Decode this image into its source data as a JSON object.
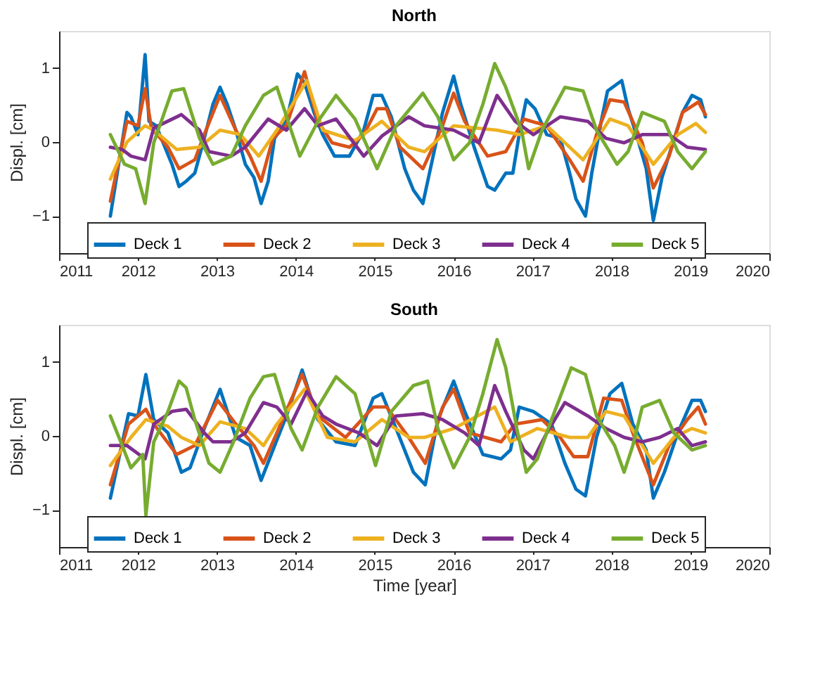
{
  "chart_data": [
    {
      "type": "line",
      "title": "North",
      "ylabel": "Displ. [cm]",
      "xlim": [
        2011,
        2020
      ],
      "xticks": [
        2011,
        2012,
        2013,
        2014,
        2015,
        2016,
        2017,
        2018,
        2019,
        2020
      ],
      "ylim": [
        -1.5,
        1.5
      ],
      "yticks": [
        -1,
        0,
        1
      ],
      "grid": false,
      "legend": "bottom",
      "marker": "none",
      "line_style": "solid",
      "series": [
        {
          "name": "Deck 1",
          "color": "#0072bd",
          "x": [
            2011.65,
            2011.86,
            2011.91,
            2012.0,
            2012.09,
            2012.14,
            2012.23,
            2012.43,
            2012.52,
            2012.61,
            2012.72,
            2012.84,
            2012.95,
            2013.04,
            2013.13,
            2013.24,
            2013.36,
            2013.47,
            2013.56,
            2013.65,
            2013.73,
            2013.88,
            2014.02,
            2014.11,
            2014.23,
            2014.34,
            2014.49,
            2014.68,
            2014.86,
            2014.98,
            2015.09,
            2015.21,
            2015.38,
            2015.49,
            2015.61,
            2015.74,
            2015.86,
            2016.0,
            2016.09,
            2016.26,
            2016.43,
            2016.52,
            2016.66,
            2016.75,
            2016.83,
            2016.92,
            2017.03,
            2017.18,
            2017.35,
            2017.47,
            2017.55,
            2017.67,
            2017.75,
            2017.87,
            2017.95,
            2018.13,
            2018.21,
            2018.33,
            2018.44,
            2018.53,
            2018.64,
            2018.76,
            2018.9,
            2019.02,
            2019.13,
            2019.19
          ],
          "values": [
            -1.0,
            0.4,
            0.34,
            0.1,
            1.18,
            0.28,
            0.22,
            -0.3,
            -0.6,
            -0.53,
            -0.42,
            0.05,
            0.51,
            0.74,
            0.51,
            0.16,
            -0.3,
            -0.48,
            -0.83,
            -0.53,
            0.05,
            0.28,
            0.92,
            0.8,
            0.4,
            0.1,
            -0.19,
            -0.19,
            0.16,
            0.63,
            0.63,
            0.34,
            -0.36,
            -0.65,
            -0.83,
            -0.19,
            0.4,
            0.89,
            0.51,
            -0.07,
            -0.6,
            -0.65,
            -0.42,
            -0.42,
            0.1,
            0.57,
            0.45,
            0.1,
            0.05,
            -0.42,
            -0.77,
            -1.0,
            -0.42,
            0.28,
            0.69,
            0.83,
            0.45,
            0.05,
            -0.36,
            -1.06,
            -0.48,
            -0.07,
            0.4,
            0.63,
            0.57,
            0.34
          ]
        },
        {
          "name": "Deck 2",
          "color": "#d95319",
          "x": [
            2011.65,
            2011.86,
            2012.0,
            2012.09,
            2012.17,
            2012.38,
            2012.52,
            2012.72,
            2012.84,
            2013.04,
            2013.24,
            2013.42,
            2013.56,
            2013.71,
            2013.88,
            2014.11,
            2014.28,
            2014.46,
            2014.68,
            2014.86,
            2015.03,
            2015.15,
            2015.32,
            2015.61,
            2015.86,
            2016.0,
            2016.14,
            2016.43,
            2016.66,
            2016.89,
            2017.18,
            2017.47,
            2017.64,
            2017.81,
            2017.98,
            2018.16,
            2018.39,
            2018.53,
            2018.73,
            2018.9,
            2019.1,
            2019.19
          ],
          "values": [
            -0.8,
            0.28,
            0.22,
            0.72,
            0.19,
            -0.07,
            -0.36,
            -0.24,
            0.1,
            0.63,
            0.16,
            -0.19,
            -0.53,
            0.05,
            0.22,
            0.95,
            0.28,
            -0.01,
            -0.07,
            0.1,
            0.45,
            0.45,
            -0.07,
            -0.36,
            0.22,
            0.66,
            0.28,
            -0.19,
            -0.13,
            0.31,
            0.22,
            -0.24,
            -0.53,
            0.1,
            0.57,
            0.54,
            -0.01,
            -0.62,
            -0.19,
            0.4,
            0.54,
            0.37
          ]
        },
        {
          "name": "Deck 3",
          "color": "#edb120",
          "x": [
            2011.65,
            2011.86,
            2012.09,
            2012.2,
            2012.49,
            2012.78,
            2013.04,
            2013.3,
            2013.53,
            2013.76,
            2014.14,
            2014.34,
            2014.75,
            2015.09,
            2015.43,
            2015.63,
            2016.0,
            2016.55,
            2016.83,
            2017.18,
            2017.64,
            2017.98,
            2018.21,
            2018.53,
            2018.84,
            2019.07,
            2019.19
          ],
          "values": [
            -0.5,
            0,
            0.22,
            0.16,
            -0.1,
            -0.07,
            0.16,
            0.1,
            -0.19,
            0.16,
            0.83,
            0.16,
            0.02,
            0.28,
            -0.07,
            -0.13,
            0.22,
            0.16,
            0.1,
            0.22,
            -0.24,
            0.31,
            0.22,
            -0.3,
            0.1,
            0.25,
            0.13
          ]
        },
        {
          "name": "Deck 4",
          "color": "#7e2f8e",
          "x": [
            2011.65,
            2011.8,
            2011.91,
            2012.09,
            2012.2,
            2012.55,
            2012.78,
            2012.9,
            2013.18,
            2013.36,
            2013.65,
            2013.88,
            2014.11,
            2014.28,
            2014.51,
            2014.86,
            2015.09,
            2015.43,
            2015.63,
            2016.0,
            2016.32,
            2016.55,
            2016.78,
            2017.01,
            2017.35,
            2017.7,
            2017.93,
            2018.16,
            2018.39,
            2018.73,
            2018.96,
            2019.19
          ],
          "values": [
            -0.07,
            -0.1,
            -0.19,
            -0.24,
            0.19,
            0.37,
            0.16,
            -0.13,
            -0.19,
            -0.07,
            0.31,
            0.16,
            0.45,
            0.22,
            0.31,
            -0.19,
            0.08,
            0.34,
            0.22,
            0.16,
            -0.01,
            0.63,
            0.28,
            0.1,
            0.34,
            0.28,
            0.05,
            -0.01,
            0.1,
            0.1,
            -0.07,
            -0.1
          ]
        },
        {
          "name": "Deck 5",
          "color": "#77ac30",
          "x": [
            2011.65,
            2011.83,
            2011.97,
            2012.09,
            2012.2,
            2012.43,
            2012.58,
            2012.78,
            2012.95,
            2013.18,
            2013.36,
            2013.59,
            2013.76,
            2013.94,
            2014.05,
            2014.28,
            2014.51,
            2014.75,
            2015.03,
            2015.27,
            2015.61,
            2015.8,
            2016.0,
            2016.2,
            2016.37,
            2016.52,
            2016.66,
            2016.86,
            2016.95,
            2017.12,
            2017.41,
            2017.64,
            2017.81,
            2018.07,
            2018.21,
            2018.39,
            2018.67,
            2018.84,
            2019.02,
            2019.19
          ],
          "values": [
            0.1,
            -0.3,
            -0.36,
            -0.83,
            -0.01,
            0.69,
            0.72,
            0.05,
            -0.3,
            -0.19,
            0.22,
            0.63,
            0.74,
            0.16,
            -0.19,
            0.28,
            0.63,
            0.31,
            -0.36,
            0.22,
            0.66,
            0.34,
            -0.24,
            -0.01,
            0.51,
            1.06,
            0.74,
            0.16,
            -0.36,
            0.16,
            0.74,
            0.69,
            0.16,
            -0.3,
            -0.13,
            0.4,
            0.28,
            -0.13,
            -0.36,
            -0.13
          ]
        }
      ]
    },
    {
      "type": "line",
      "title": "South",
      "xlabel": "Time [year]",
      "ylabel": "Displ. [cm]",
      "xlim": [
        2011,
        2020
      ],
      "xticks": [
        2011,
        2012,
        2013,
        2014,
        2015,
        2016,
        2017,
        2018,
        2019,
        2020
      ],
      "ylim": [
        -1.5,
        1.5
      ],
      "yticks": [
        -1,
        0,
        1
      ],
      "grid": false,
      "legend": "bottom",
      "marker": "none",
      "line_style": "solid",
      "series": [
        {
          "name": "Deck 1",
          "color": "#0072bd",
          "x": [
            2011.65,
            2011.88,
            2012.0,
            2012.1,
            2012.2,
            2012.38,
            2012.55,
            2012.66,
            2012.84,
            2013.04,
            2013.24,
            2013.42,
            2013.56,
            2013.71,
            2013.88,
            2014.08,
            2014.28,
            2014.51,
            2014.75,
            2014.98,
            2015.09,
            2015.27,
            2015.49,
            2015.64,
            2015.8,
            2016.0,
            2016.14,
            2016.37,
            2016.6,
            2016.72,
            2016.83,
            2017.01,
            2017.24,
            2017.41,
            2017.55,
            2017.67,
            2017.81,
            2017.98,
            2018.13,
            2018.27,
            2018.44,
            2018.53,
            2018.67,
            2018.84,
            2019.02,
            2019.13,
            2019.19
          ],
          "values": [
            -0.84,
            0.3,
            0.27,
            0.83,
            0.22,
            0.04,
            -0.49,
            -0.43,
            0.1,
            0.63,
            -0.02,
            -0.13,
            -0.6,
            -0.19,
            0.27,
            0.89,
            0.22,
            -0.08,
            -0.13,
            0.51,
            0.57,
            0.1,
            -0.49,
            -0.66,
            0.22,
            0.74,
            0.33,
            -0.25,
            -0.31,
            -0.19,
            0.39,
            0.33,
            0.16,
            -0.37,
            -0.72,
            -0.81,
            -0.02,
            0.57,
            0.71,
            0.16,
            -0.19,
            -0.84,
            -0.49,
            0.04,
            0.48,
            0.48,
            0.33
          ]
        },
        {
          "name": "Deck 2",
          "color": "#d95319",
          "x": [
            2011.65,
            2011.88,
            2012.1,
            2012.2,
            2012.49,
            2012.72,
            2013.01,
            2013.24,
            2013.47,
            2013.59,
            2013.76,
            2014.08,
            2014.28,
            2014.63,
            2014.98,
            2015.15,
            2015.43,
            2015.64,
            2015.86,
            2016.0,
            2016.2,
            2016.6,
            2016.78,
            2017.12,
            2017.35,
            2017.52,
            2017.7,
            2017.9,
            2018.13,
            2018.27,
            2018.53,
            2018.73,
            2018.96,
            2019.1,
            2019.19
          ],
          "values": [
            -0.66,
            0.16,
            0.36,
            0.16,
            -0.25,
            -0.13,
            0.48,
            0.16,
            -0.13,
            -0.37,
            0.04,
            0.83,
            0.27,
            -0.02,
            0.39,
            0.39,
            -0.02,
            -0.37,
            0.39,
            0.63,
            0.04,
            -0.08,
            0.16,
            0.22,
            -0.02,
            -0.28,
            -0.28,
            0.51,
            0.48,
            0.04,
            -0.66,
            -0.13,
            0.22,
            0.39,
            0.16
          ]
        },
        {
          "name": "Deck 3",
          "color": "#edb120",
          "x": [
            2011.65,
            2011.91,
            2012.1,
            2012.38,
            2012.55,
            2012.78,
            2013.04,
            2013.36,
            2013.59,
            2013.76,
            2014.11,
            2014.4,
            2014.75,
            2015.09,
            2015.43,
            2015.63,
            2016.0,
            2016.52,
            2016.72,
            2017.06,
            2017.47,
            2017.7,
            2017.93,
            2018.16,
            2018.53,
            2018.79,
            2019.02,
            2019.19
          ],
          "values": [
            -0.4,
            -0.02,
            0.22,
            0.13,
            -0.02,
            -0.13,
            0.19,
            0.1,
            -0.13,
            0.16,
            0.63,
            -0.02,
            -0.08,
            0.22,
            -0.02,
            -0.02,
            0.1,
            0.39,
            -0.08,
            0.1,
            -0.02,
            -0.02,
            0.33,
            0.27,
            -0.37,
            -0.02,
            0.1,
            0.04
          ]
        },
        {
          "name": "Deck 4",
          "color": "#7e2f8e",
          "x": [
            2011.65,
            2011.86,
            2012.09,
            2012.2,
            2012.43,
            2012.61,
            2012.84,
            2012.95,
            2013.18,
            2013.36,
            2013.59,
            2013.76,
            2013.94,
            2014.14,
            2014.34,
            2014.51,
            2014.8,
            2015.03,
            2015.27,
            2015.61,
            2015.86,
            2016.14,
            2016.32,
            2016.52,
            2016.66,
            2016.89,
            2017.01,
            2017.18,
            2017.41,
            2017.7,
            2017.93,
            2018.16,
            2018.39,
            2018.61,
            2018.84,
            2019.02,
            2019.19
          ],
          "values": [
            -0.13,
            -0.13,
            -0.31,
            0.16,
            0.33,
            0.36,
            0.04,
            -0.08,
            -0.08,
            0.04,
            0.45,
            0.39,
            0.16,
            0.6,
            0.27,
            0.16,
            0.04,
            -0.13,
            0.27,
            0.3,
            0.22,
            0.04,
            -0.13,
            0.68,
            0.33,
            -0.19,
            -0.31,
            0.04,
            0.45,
            0.27,
            0.1,
            -0.02,
            -0.08,
            -0.02,
            0.1,
            -0.13,
            -0.08
          ]
        },
        {
          "name": "Deck 5",
          "color": "#77ac30",
          "x": [
            2011.65,
            2011.8,
            2011.91,
            2012.06,
            2012.1,
            2012.2,
            2012.38,
            2012.52,
            2012.61,
            2012.72,
            2012.9,
            2013.04,
            2013.21,
            2013.42,
            2013.59,
            2013.73,
            2013.94,
            2014.08,
            2014.28,
            2014.51,
            2014.75,
            2015.01,
            2015.21,
            2015.49,
            2015.67,
            2015.8,
            2016.0,
            2016.2,
            2016.37,
            2016.55,
            2016.66,
            2016.8,
            2016.92,
            2017.06,
            2017.24,
            2017.49,
            2017.67,
            2017.81,
            2018.04,
            2018.16,
            2018.27,
            2018.39,
            2018.61,
            2018.79,
            2019.02,
            2019.19
          ],
          "values": [
            0.27,
            -0.13,
            -0.43,
            -0.25,
            -1.07,
            -0.08,
            0.33,
            0.74,
            0.65,
            0.22,
            -0.37,
            -0.49,
            -0.08,
            0.51,
            0.8,
            0.83,
            0.1,
            -0.19,
            0.39,
            0.8,
            0.57,
            -0.4,
            0.33,
            0.68,
            0.74,
            0.1,
            -0.43,
            -0.02,
            0.57,
            1.3,
            0.92,
            0.1,
            -0.49,
            -0.31,
            0.22,
            0.92,
            0.83,
            0.27,
            -0.13,
            -0.49,
            -0.13,
            0.39,
            0.48,
            0.04,
            -0.19,
            -0.13
          ]
        }
      ]
    }
  ]
}
